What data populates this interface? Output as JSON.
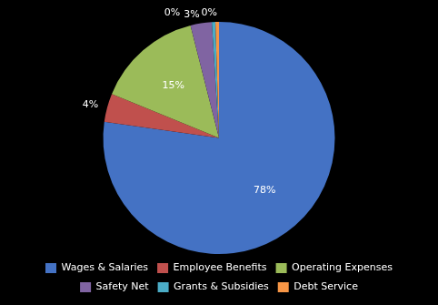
{
  "chart_data": {
    "type": "pie",
    "categories": [
      "Wages & Salaries",
      "Employee Benefits",
      "Operating Expenses",
      "Safety Net",
      "Grants & Subsidies",
      "Debt Service"
    ],
    "values": [
      78,
      4,
      15,
      3,
      0.5,
      0.5
    ],
    "value_labels": [
      "78%",
      "4%",
      "15%",
      "3%",
      "0%",
      "0%"
    ],
    "colors": [
      "#4472c4",
      "#c0504d",
      "#9bbb59",
      "#8064a2",
      "#4bacc6",
      "#f79646"
    ],
    "data_labels": true,
    "legend": "bottom"
  }
}
